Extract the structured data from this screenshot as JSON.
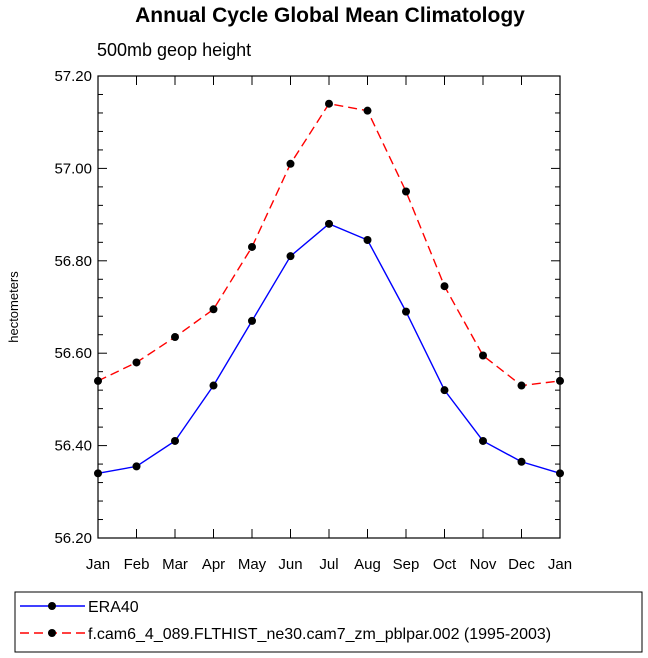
{
  "chart_data": {
    "type": "line",
    "title": "Annual Cycle Global Mean Climatology",
    "subtitle": "500mb geop height",
    "ylabel": "hectometers",
    "xlabel": "",
    "categories": [
      "Jan",
      "Feb",
      "Mar",
      "Apr",
      "May",
      "Jun",
      "Jul",
      "Aug",
      "Sep",
      "Oct",
      "Nov",
      "Dec",
      "Jan"
    ],
    "ylim": [
      56.2,
      57.2
    ],
    "y_ticks": [
      "56.20",
      "56.40",
      "56.60",
      "56.80",
      "57.00",
      "57.20"
    ],
    "series": [
      {
        "name": "ERA40",
        "color": "#0000ff",
        "dash": "solid",
        "values": [
          56.34,
          56.355,
          56.41,
          56.53,
          56.67,
          56.81,
          56.88,
          56.845,
          56.69,
          56.52,
          56.41,
          56.365,
          56.34
        ]
      },
      {
        "name": "f.cam6_4_089.FLTHIST_ne30.cam7_zm_pblpar.002 (1995-2003)",
        "color": "#ff0000",
        "dash": "dashed",
        "values": [
          56.54,
          56.58,
          56.635,
          56.695,
          56.83,
          57.01,
          57.14,
          57.125,
          56.95,
          56.745,
          56.595,
          56.53,
          56.54
        ]
      }
    ],
    "legend_position": "bottom"
  }
}
